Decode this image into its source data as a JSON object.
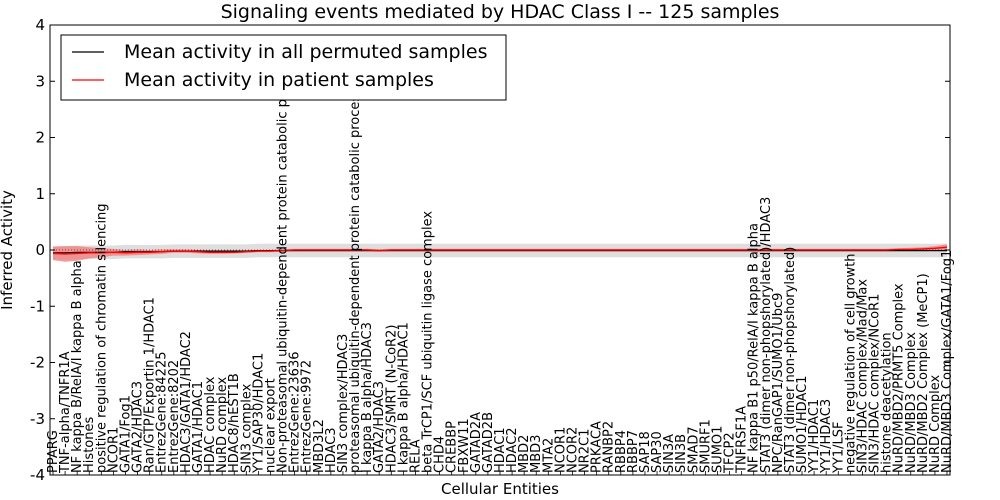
{
  "chart_data": {
    "type": "line",
    "title": "Signaling events mediated by HDAC Class I -- 125 samples",
    "xlabel": "Cellular Entities",
    "ylabel": "Inferred Activity",
    "ylim": [
      -4,
      4
    ],
    "yticks": [
      -4,
      -3,
      -2,
      -1,
      0,
      1,
      2,
      3,
      4
    ],
    "legend": {
      "placement": "top-left",
      "entries": [
        {
          "label": "Mean activity in all permuted samples",
          "color": "#000000"
        },
        {
          "label": "Mean activity in patient samples",
          "color": "#ff0000"
        }
      ]
    },
    "categories": [
      "PPARG",
      "TNF-alpha/TNFR1A",
      "NF kappa B/RelA/I kappa B alpha",
      "Histones",
      "positive regulation of chromatin silencing",
      "NCOR1",
      "GATA1/Fog1",
      "GATA2/HDAC3",
      "Ran/GTP/Exportin 1/HDAC1",
      "EntrezGene:84225",
      "EntrezGene:8202",
      "HDAC3/GATA1/HDAC2",
      "GATA1/HDAC1",
      "HDAC complex",
      "NuRD complex",
      "HDAC8/hEST1B",
      "SIN3 complex",
      "YY1/SAP30/HDAC1",
      "nuclear export",
      "Non-proteasomal ubiquitin-dependent protein catabolic process",
      "EntrezGene:23636",
      "EntrezGene:9972",
      "MBD3L2",
      "HDAC3",
      "SIN3 complex/HDAC3",
      "proteasomal ubiquitin-dependent protein catabolic process",
      "I kappa B alpha/HDAC3",
      "GATA2/HDAC3",
      "HDAC3/SMRT (N-CoR2)",
      "I kappa B alpha/HDAC1",
      "RELA",
      "beta TrCP1/SCF ubiquitin ligase complex",
      "CHD4",
      "CREBBP",
      "FBXW11",
      "GATAD2A",
      "GATAD2B",
      "HDAC1",
      "HDAC2",
      "MBD2",
      "MBD3",
      "MTA2",
      "NCOR1",
      "NCOR2",
      "NR2C1",
      "PRKACA",
      "RANBP2",
      "RBBP4",
      "RBBP7",
      "SAP18",
      "SAP30",
      "SIN3A",
      "SIN3B",
      "SMAD7",
      "SMURF1",
      "SUMO1",
      "TFCP2",
      "TNFRSF1A",
      "NF kappa B1 p50/RelA/I kappa B alpha",
      "STAT3 (dimer non-phopshorylated)/HDAC3",
      "NPC/RanGAP1/SUMO1/Ubc9",
      "STAT3 (dimer non-phopshorylated)",
      "SUMO1/HDAC1",
      "YY1/HDAC1",
      "YY1/HDAC3",
      "YY1/LSF",
      "negative regulation of cell growth",
      "SIN3/HDAC complex/Mad/Max",
      "SIN3/HDAC complex/NCoR1",
      "histone deacetylation",
      "NuRD/MBD2/PRMT5 Complex",
      "NuRD/MBD3 Complex",
      "NuRD/MBD2 Complex (MeCP1)",
      "NuRD Complex",
      "NuRD/MBD3 Complex/GATA1/Fog1"
    ],
    "series": [
      {
        "name": "Mean activity in all permuted samples",
        "color": "#000000",
        "values": [
          -0.05,
          -0.05,
          -0.04,
          -0.04,
          -0.04,
          -0.04,
          -0.03,
          -0.03,
          -0.03,
          -0.03,
          -0.02,
          -0.02,
          -0.02,
          -0.02,
          -0.02,
          -0.02,
          -0.02,
          -0.01,
          -0.01,
          -0.01,
          -0.01,
          -0.01,
          -0.01,
          -0.01,
          -0.01,
          -0.01,
          -0.01,
          -0.01,
          -0.01,
          -0.01,
          -0.01,
          -0.01,
          -0.01,
          -0.01,
          -0.01,
          -0.01,
          -0.01,
          -0.01,
          -0.01,
          -0.01,
          -0.01,
          -0.01,
          -0.01,
          -0.01,
          -0.01,
          -0.01,
          -0.01,
          -0.01,
          -0.01,
          -0.01,
          -0.01,
          -0.01,
          -0.01,
          -0.01,
          -0.01,
          -0.01,
          -0.01,
          -0.01,
          -0.01,
          -0.01,
          -0.01,
          -0.01,
          -0.01,
          -0.01,
          -0.01,
          -0.01,
          -0.01,
          -0.01,
          -0.01,
          -0.01,
          -0.01,
          -0.01,
          -0.01,
          -0.01,
          -0.01
        ]
      },
      {
        "name": "Mean activity in patient samples",
        "color": "#ff0000",
        "values": [
          -0.06,
          -0.07,
          -0.06,
          -0.05,
          -0.05,
          -0.04,
          -0.05,
          -0.04,
          -0.04,
          -0.03,
          -0.02,
          -0.02,
          -0.03,
          -0.04,
          -0.04,
          -0.04,
          -0.03,
          -0.02,
          -0.02,
          -0.01,
          0.0,
          0.0,
          0.0,
          0.0,
          0.0,
          0.0,
          0.0,
          -0.01,
          0.0,
          0.0,
          0.0,
          0.0,
          0.0,
          0.0,
          0.0,
          0.0,
          0.0,
          0.0,
          0.0,
          0.0,
          0.0,
          0.0,
          0.0,
          0.0,
          0.0,
          0.0,
          0.0,
          0.0,
          0.0,
          0.0,
          0.0,
          0.0,
          0.0,
          0.0,
          0.0,
          0.0,
          0.0,
          0.0,
          0.0,
          0.0,
          0.0,
          0.0,
          0.0,
          0.0,
          0.0,
          0.0,
          0.0,
          0.0,
          0.0,
          0.0,
          0.01,
          0.01,
          0.02,
          0.03,
          0.05
        ]
      }
    ],
    "bands": [
      {
        "name": "permuted spread",
        "color": "#d3d3d3",
        "halfwidth": 0.12
      },
      {
        "name": "patient spread",
        "color": "#f08080",
        "halfwidth": [
          0.12,
          0.14,
          0.13,
          0.1,
          0.08,
          0.06,
          0.05,
          0.05,
          0.04,
          0.04,
          0.03,
          0.03,
          0.03,
          0.03,
          0.03,
          0.02,
          0.02,
          0.02,
          0.02,
          0.02,
          0.02,
          0.02,
          0.02,
          0.02,
          0.02,
          0.02,
          0.02,
          0.02,
          0.02,
          0.02,
          0.02,
          0.02,
          0.02,
          0.02,
          0.02,
          0.02,
          0.02,
          0.02,
          0.02,
          0.02,
          0.02,
          0.02,
          0.02,
          0.02,
          0.02,
          0.02,
          0.02,
          0.02,
          0.02,
          0.02,
          0.02,
          0.02,
          0.02,
          0.02,
          0.02,
          0.02,
          0.02,
          0.02,
          0.02,
          0.02,
          0.02,
          0.02,
          0.02,
          0.02,
          0.02,
          0.02,
          0.02,
          0.02,
          0.02,
          0.02,
          0.02,
          0.03,
          0.03,
          0.04,
          0.05
        ]
      }
    ]
  }
}
